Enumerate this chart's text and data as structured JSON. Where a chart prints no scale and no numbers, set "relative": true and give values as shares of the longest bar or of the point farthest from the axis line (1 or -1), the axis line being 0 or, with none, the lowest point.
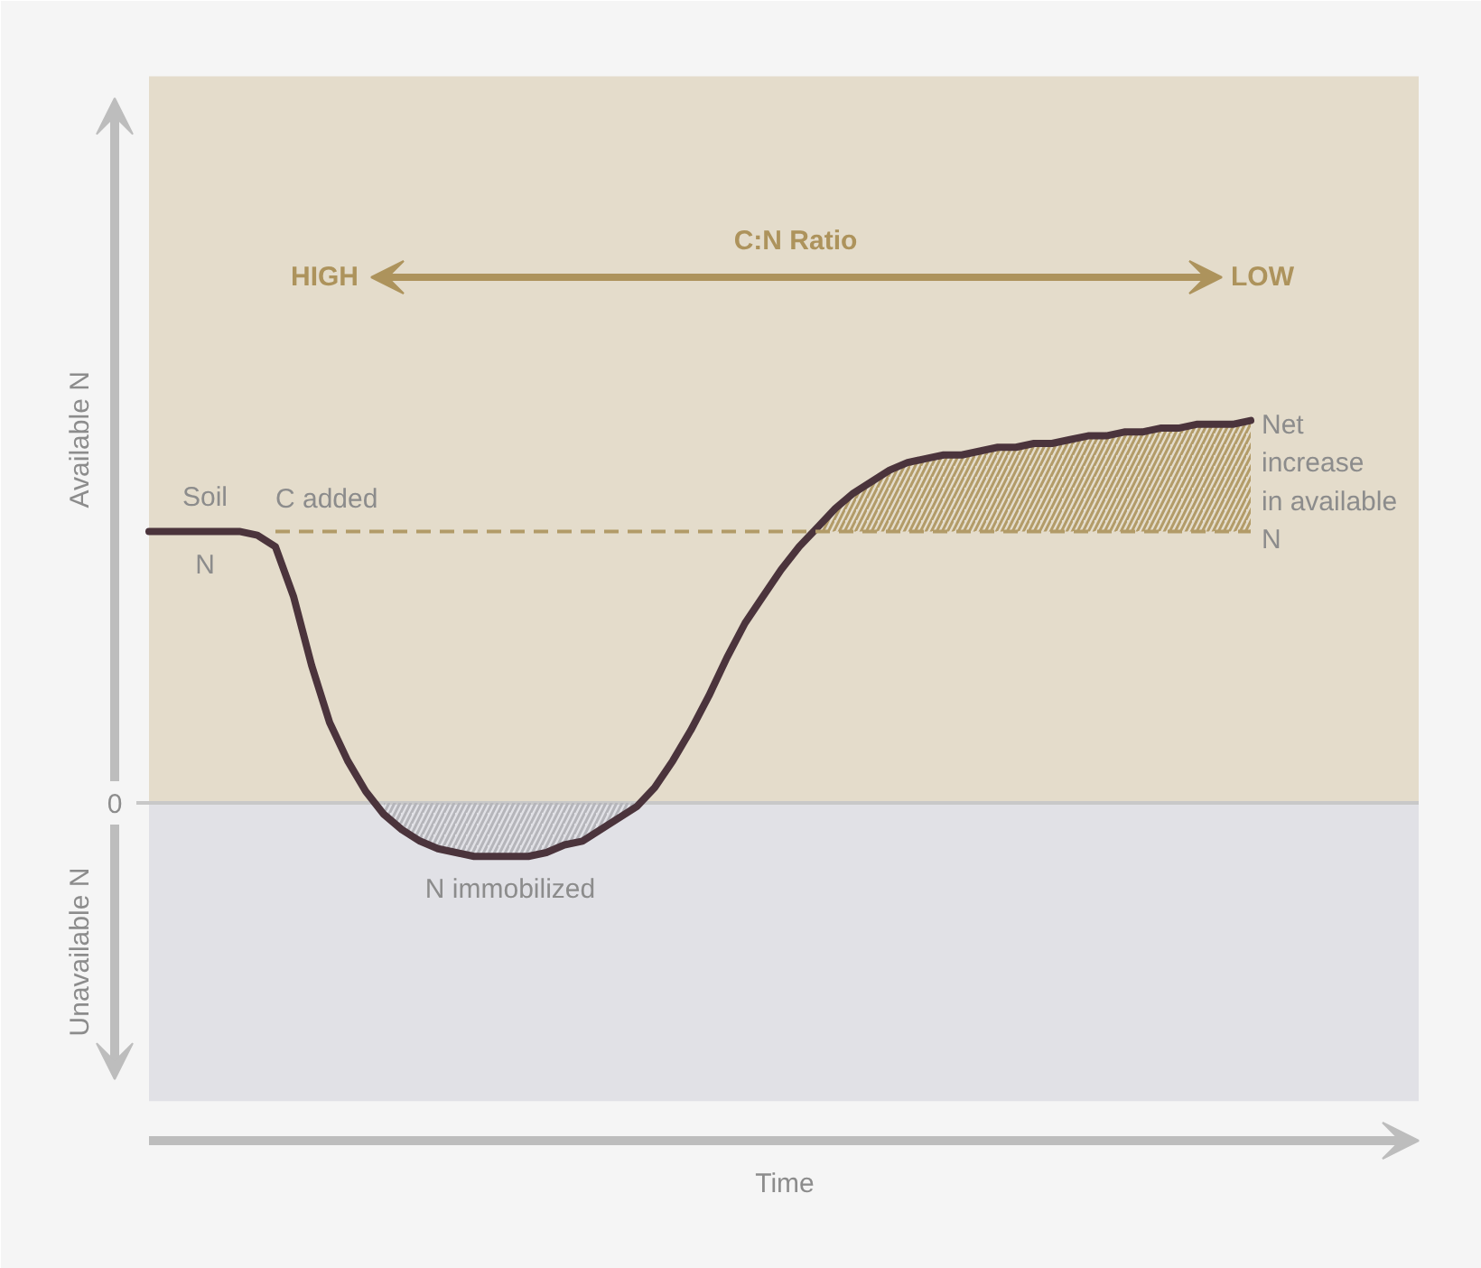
{
  "chart_data": {
    "type": "line",
    "relative": true,
    "annotations": [
      "C:N Ratio",
      "HIGH",
      "LOW",
      "Time"
    ],
    "categories": [
      null,
      null,
      null,
      null,
      null,
      null,
      null,
      null,
      null,
      null,
      null,
      null,
      null,
      null,
      null,
      null,
      null,
      null,
      null,
      null,
      null,
      null,
      null,
      null,
      null,
      null,
      null,
      null,
      null,
      null,
      null,
      null,
      null,
      null,
      null,
      null,
      null,
      null,
      null,
      null,
      null,
      null,
      null,
      null,
      null,
      null,
      null,
      null,
      null,
      null,
      null,
      null,
      null,
      null,
      null,
      null,
      null,
      null,
      null,
      null,
      null,
      null
    ],
    "bands": [
      {
        "axis": "y",
        "from": 0,
        "to": 1.9,
        "label": "Available N",
        "color": "#e4dccb"
      },
      {
        "axis": "y",
        "from": -0.78,
        "to": 0,
        "label": "Unavailable N",
        "color": "#e1e1e6"
      }
    ],
    "ref_lines": [
      {
        "axis": "y",
        "value": 0,
        "label": "0",
        "color": "#c8c8c8"
      }
    ],
    "series": [
      {
        "name": "Soil\nN",
        "color": "#4b343c",
        "values": [
          0.71,
          0.71,
          0.71,
          0.71,
          0.71,
          0.71,
          0.7,
          0.67,
          0.54,
          0.36,
          0.21,
          0.11,
          0.03,
          -0.03,
          -0.07,
          -0.1,
          -0.12,
          -0.13,
          -0.14,
          -0.14,
          -0.14,
          -0.14,
          -0.13,
          -0.11,
          -0.1,
          -0.07,
          -0.04,
          -0.01,
          0.04,
          0.11,
          0.19,
          0.28,
          0.38,
          0.47,
          0.54,
          0.61,
          0.67,
          0.72,
          0.77,
          0.81,
          0.84,
          0.87,
          0.89,
          0.9,
          0.91,
          0.91,
          0.92,
          0.93,
          0.93,
          0.94,
          0.94,
          0.95,
          0.96,
          0.96,
          0.97,
          0.97,
          0.98,
          0.98,
          0.99,
          0.99,
          0.99,
          1
        ]
      },
      {
        "name": "C added",
        "type": "line",
        "line_style": "dashed",
        "color": "#b29b68",
        "values": [
          null,
          null,
          null,
          null,
          null,
          null,
          null,
          0.71,
          0.71,
          0.71,
          0.71,
          0.71,
          0.71,
          0.71,
          0.71,
          0.71,
          0.71,
          0.71,
          0.71,
          0.71,
          0.71,
          0.71,
          0.71,
          0.71,
          0.71,
          0.71,
          0.71,
          0.71,
          0.71,
          0.71,
          0.71,
          0.71,
          0.71,
          0.71,
          0.71,
          0.71,
          0.71,
          0.71,
          0.71,
          0.71,
          0.71,
          0.71,
          0.71,
          0.71,
          0.71,
          0.71,
          0.71,
          0.71,
          0.71,
          0.71,
          0.71,
          0.71,
          0.71,
          0.71,
          0.71,
          0.71,
          0.71,
          0.71,
          0.71,
          0.71,
          0.71,
          0.71
        ]
      },
      {
        "name": "N immobilized",
        "type": "area",
        "color": "#b5b5ba",
        "values": [
          null,
          null,
          null,
          null,
          null,
          null,
          null,
          null,
          null,
          null,
          null,
          null,
          null,
          -0.03,
          -0.07,
          -0.1,
          -0.12,
          -0.13,
          -0.14,
          -0.14,
          -0.14,
          -0.14,
          -0.13,
          -0.11,
          -0.1,
          -0.07,
          -0.04,
          -0.01,
          null,
          null,
          null,
          null,
          null,
          null,
          null,
          null,
          null,
          null,
          null,
          null,
          null,
          null,
          null,
          null,
          null,
          null,
          null,
          null,
          null,
          null,
          null,
          null,
          null,
          null,
          null,
          null,
          null,
          null,
          null,
          null,
          null,
          null
        ]
      },
      {
        "name": "Net\nincrease\nin available\nN",
        "type": "area",
        "color": "#b29b68",
        "values": [
          null,
          null,
          null,
          null,
          null,
          null,
          null,
          null,
          null,
          null,
          null,
          null,
          null,
          null,
          null,
          null,
          null,
          null,
          null,
          null,
          null,
          null,
          null,
          null,
          null,
          null,
          null,
          null,
          null,
          null,
          null,
          null,
          null,
          null,
          null,
          null,
          null,
          0.72,
          0.77,
          0.81,
          0.84,
          0.87,
          0.89,
          0.9,
          0.91,
          0.91,
          0.92,
          0.93,
          0.93,
          0.94,
          0.94,
          0.95,
          0.96,
          0.96,
          0.97,
          0.97,
          0.98,
          0.98,
          0.99,
          0.99,
          0.99,
          1
        ]
      }
    ]
  }
}
